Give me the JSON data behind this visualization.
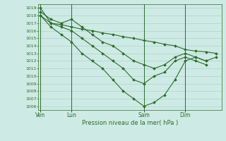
{
  "background_color": "#ceeae4",
  "grid_color": "#a8ccc8",
  "line_color": "#2d6b2d",
  "marker_color": "#2d6b2d",
  "xlabel": "Pression niveau de la mer( hPa )",
  "ylim": [
    1005.5,
    1019.5
  ],
  "yticks": [
    1006,
    1007,
    1008,
    1009,
    1010,
    1011,
    1012,
    1013,
    1014,
    1015,
    1016,
    1017,
    1018,
    1019
  ],
  "xtick_labels": [
    "Ven",
    "Lun",
    "Sam",
    "Dim"
  ],
  "xtick_positions": [
    0,
    3,
    10,
    14
  ],
  "xlim": [
    -0.2,
    17.5
  ],
  "s1_x": [
    0,
    1,
    2,
    3,
    4,
    5,
    6,
    7,
    8,
    9,
    10,
    11,
    12,
    13,
    14,
    15,
    16,
    17
  ],
  "s1_y": [
    1019,
    1017,
    1016.8,
    1016.5,
    1016.2,
    1016,
    1015.7,
    1015.5,
    1015.2,
    1015,
    1014.7,
    1014.5,
    1014.2,
    1014,
    1013.5,
    1013.3,
    1013.2,
    1013
  ],
  "s2_x": [
    0,
    1,
    2,
    3,
    4,
    5,
    6,
    7,
    8,
    9,
    10,
    11,
    12,
    13,
    14,
    15,
    16,
    17
  ],
  "s2_y": [
    1018.5,
    1017.5,
    1017,
    1017.5,
    1016.5,
    1015.5,
    1014.5,
    1014,
    1013,
    1012,
    1011.5,
    1011,
    1011.5,
    1012.5,
    1013,
    1012.5,
    1012,
    1012.5
  ],
  "s3_x": [
    0,
    1,
    2,
    3,
    4,
    5,
    6,
    7,
    8,
    9,
    10,
    11,
    12,
    13,
    14,
    15,
    16
  ],
  "s3_y": [
    1018,
    1017,
    1016.5,
    1016,
    1015,
    1014,
    1013,
    1012,
    1011,
    1009.5,
    1009,
    1010,
    1010.5,
    1012,
    1012.5,
    1012,
    1011.5
  ],
  "s4_x": [
    0,
    1,
    2,
    3,
    4,
    5,
    6,
    7,
    8,
    9,
    10,
    11,
    12,
    13,
    14,
    15,
    16
  ],
  "s4_y": [
    1018,
    1016.5,
    1015.5,
    1014.5,
    1013,
    1012,
    1011,
    1009.5,
    1008,
    1007,
    1006,
    1006.5,
    1007.5,
    1009.5,
    1012,
    1012.5,
    1012
  ]
}
